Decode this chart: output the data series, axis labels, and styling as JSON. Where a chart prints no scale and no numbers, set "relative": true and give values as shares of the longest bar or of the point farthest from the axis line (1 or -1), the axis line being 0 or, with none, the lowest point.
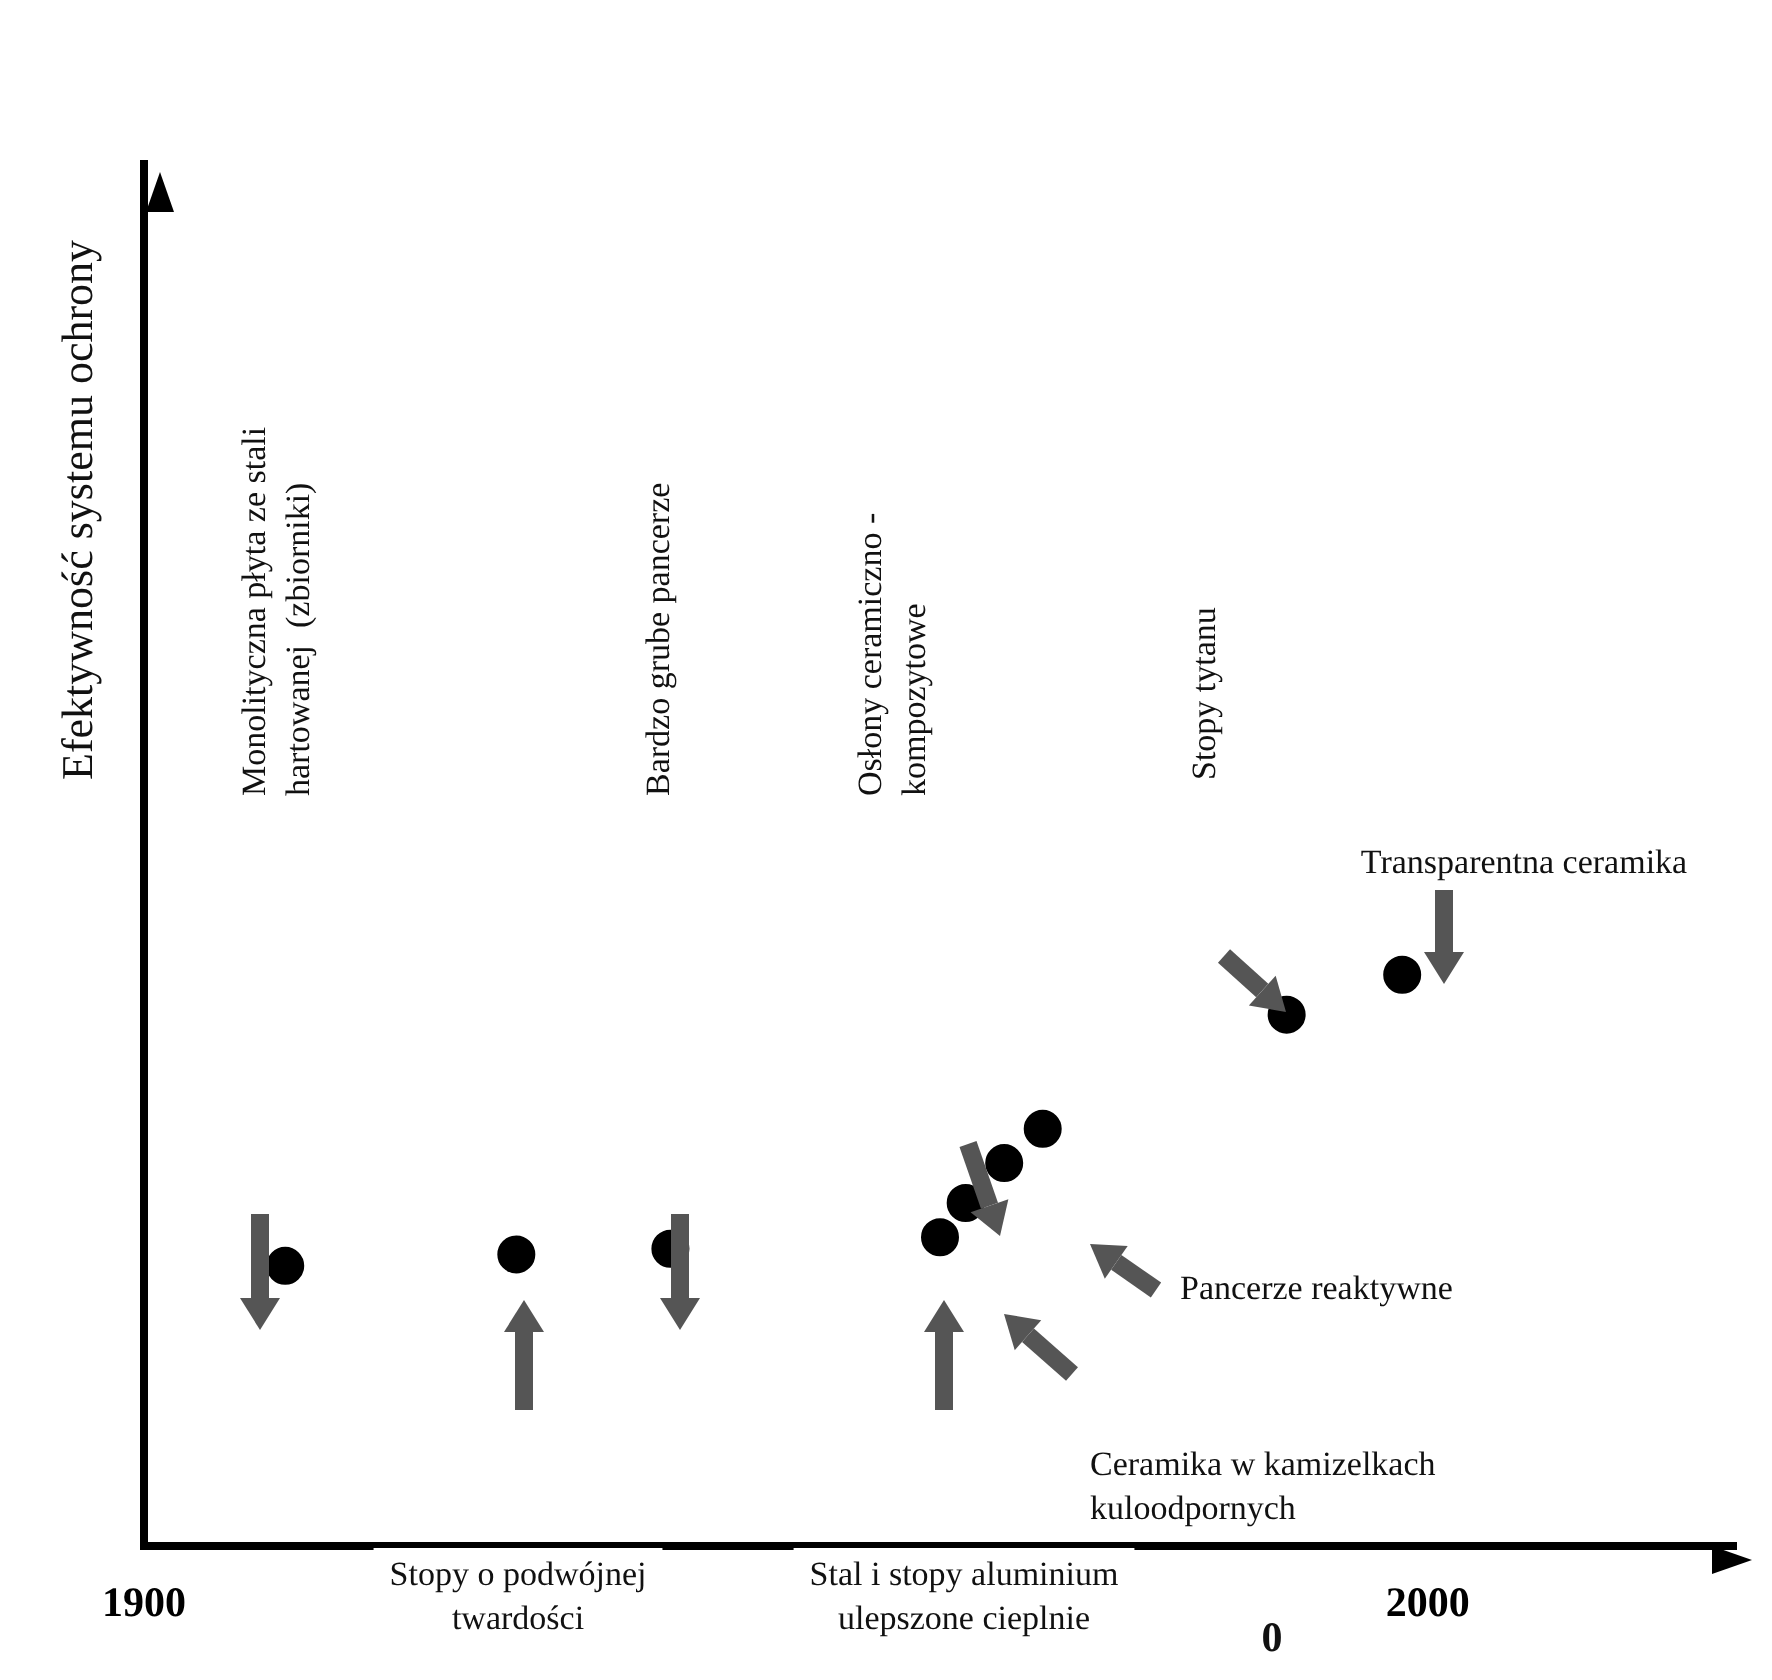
{
  "chart_data": {
    "type": "scatter",
    "relative": true,
    "tick_labels": "x",
    "marker": "circle",
    "grid": false,
    "legend": false,
    "x": [
      1911,
      1929,
      1941,
      1962,
      1964,
      1967,
      1970,
      1989,
      1998
    ],
    "values": [
      0.49,
      0.51,
      0.52,
      0.54,
      0.6,
      0.67,
      0.73,
      0.93,
      1
    ],
    "color": "#000000",
    "xlim": [
      1900,
      2024
    ],
    "xticks": [
      1900,
      2000
    ],
    "annotations": [
      "Monolityczna płyta ze stali hartowanej  (zbiorniki)",
      "Bardzo grube pancerze",
      "Osłony ceramiczno - kompozytowe",
      "Stopy tytanu",
      "Transparentna ceramika",
      "Pancerze reaktywne",
      "Ceramika w kamizelkach kuloodpornych",
      "Stopy o podwójnej twardości",
      "Stal i stopy aluminium ulepszone cieplnie",
      "Efektywność systemu ochrony",
      "0"
    ]
  }
}
